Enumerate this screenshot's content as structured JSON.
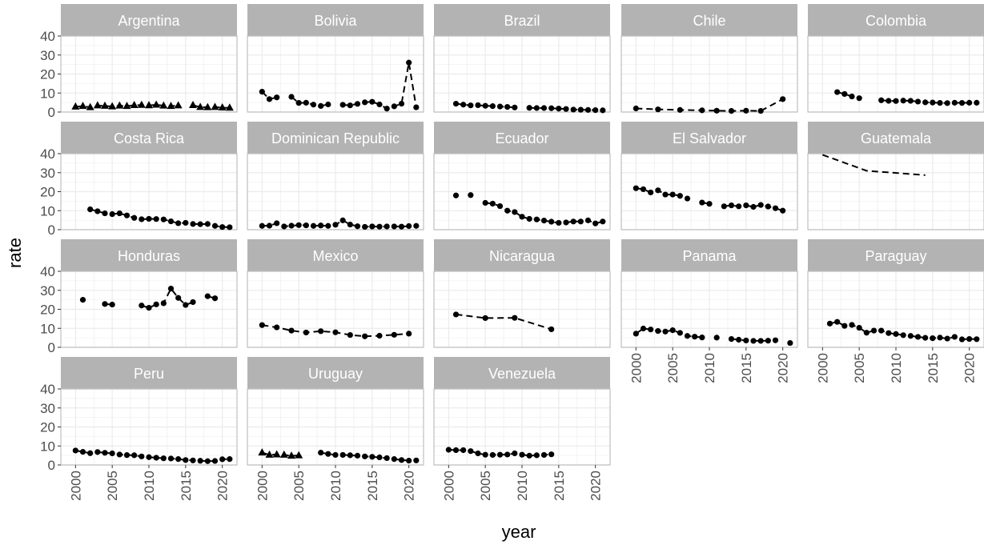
{
  "chart_data": {
    "type": "line",
    "xlabel": "year",
    "ylabel": "rate",
    "xlim": [
      1998,
      2022
    ],
    "ylim": [
      0,
      40
    ],
    "x_ticks": [
      "2000",
      "2005",
      "2010",
      "2015",
      "2020"
    ],
    "y_ticks": [
      "0",
      "10",
      "20",
      "30",
      "40"
    ],
    "grid": true,
    "line_style": "dashed",
    "colors": {
      "strip": "#b3b3b3",
      "strip_text": "#ffffff",
      "grid": "#ebebeb",
      "panel_border": "#b3b3b3",
      "series": "#000000"
    },
    "panels": [
      {
        "name": "Argentina",
        "series": [
          {
            "marker": "triangle",
            "x": [
              2000,
              2001,
              2002,
              2003,
              2004,
              2005,
              2006,
              2007,
              2008,
              2009,
              2010,
              2011,
              2012,
              2013,
              2014,
              2016,
              2017,
              2018,
              2019,
              2020,
              2021
            ],
            "y": [
              2.8,
              3.1,
              2.5,
              3.4,
              3.2,
              2.9,
              3.3,
              3.1,
              3.6,
              3.7,
              3.5,
              3.8,
              3.3,
              3.1,
              3.4,
              3.6,
              2.6,
              2.5,
              2.6,
              2.3,
              2.2
            ]
          }
        ]
      },
      {
        "name": "Bolivia",
        "series": [
          {
            "marker": "circle",
            "x": [
              2000,
              2001,
              2002,
              2004,
              2005,
              2006,
              2007,
              2008,
              2009,
              2011,
              2012,
              2013,
              2014,
              2015,
              2016,
              2017,
              2018,
              2019,
              2020,
              2021
            ],
            "y": [
              10.7,
              6.8,
              7.7,
              8.0,
              4.8,
              4.9,
              3.9,
              3.2,
              4.0,
              3.8,
              3.5,
              4.3,
              5.1,
              5.4,
              4.0,
              1.8,
              3.0,
              4.4,
              26.0,
              2.5
            ]
          }
        ]
      },
      {
        "name": "Brazil",
        "series": [
          {
            "marker": "circle",
            "x": [
              2001,
              2002,
              2003,
              2004,
              2005,
              2006,
              2007,
              2008,
              2009,
              2011,
              2012,
              2013,
              2014,
              2015,
              2016,
              2017,
              2018,
              2019,
              2020,
              2021
            ],
            "y": [
              4.4,
              3.9,
              3.5,
              3.6,
              3.3,
              3.1,
              2.9,
              2.7,
              2.4,
              2.2,
              2.1,
              2.1,
              2.0,
              1.8,
              1.6,
              1.3,
              1.2,
              1.1,
              1.0,
              0.9
            ]
          }
        ]
      },
      {
        "name": "Chile",
        "series": [
          {
            "marker": "circle",
            "x": [
              2000,
              2003,
              2006,
              2009,
              2011,
              2013,
              2015,
              2017,
              2020
            ],
            "y": [
              1.9,
              1.4,
              1.1,
              0.9,
              0.7,
              0.6,
              0.7,
              0.6,
              6.8
            ]
          }
        ]
      },
      {
        "name": "Colombia",
        "series": [
          {
            "marker": "circle",
            "x": [
              2002,
              2003,
              2004,
              2005,
              2008,
              2009,
              2010,
              2011,
              2012,
              2013,
              2014,
              2015,
              2016,
              2017,
              2018,
              2019,
              2020,
              2021
            ],
            "y": [
              10.5,
              9.5,
              8.2,
              7.3,
              6.2,
              5.9,
              5.8,
              6.0,
              5.9,
              5.5,
              5.1,
              5.0,
              4.8,
              4.7,
              4.9,
              4.8,
              4.9,
              4.9
            ]
          }
        ]
      },
      {
        "name": "Costa Rica",
        "series": [
          {
            "marker": "circle",
            "x": [
              2002,
              2003,
              2004,
              2005,
              2006,
              2007,
              2008,
              2009,
              2010,
              2011,
              2012,
              2013,
              2014,
              2015,
              2016,
              2017,
              2018,
              2019,
              2020,
              2021
            ],
            "y": [
              10.7,
              9.7,
              8.6,
              8.2,
              8.6,
              7.5,
              6.2,
              5.5,
              5.7,
              5.6,
              5.4,
              4.4,
              3.4,
              3.6,
              3.0,
              2.9,
              3.0,
              2.0,
              1.4,
              1.3
            ]
          }
        ]
      },
      {
        "name": "Dominican Republic",
        "series": [
          {
            "marker": "circle",
            "x": [
              2000,
              2001,
              2002,
              2003,
              2004,
              2005,
              2006,
              2007,
              2008,
              2009,
              2010,
              2011,
              2012,
              2013,
              2014,
              2015,
              2016,
              2017,
              2018,
              2019,
              2020,
              2021
            ],
            "y": [
              2.0,
              2.1,
              3.4,
              1.7,
              2.1,
              2.4,
              2.3,
              2.0,
              2.2,
              2.0,
              2.6,
              4.9,
              2.7,
              1.8,
              1.5,
              1.7,
              1.6,
              1.7,
              1.7,
              1.6,
              1.9,
              2.0
            ]
          }
        ]
      },
      {
        "name": "Ecuador",
        "series": [
          {
            "marker": "circle",
            "x": [
              2001,
              2003,
              2005,
              2006,
              2007,
              2008,
              2009,
              2010,
              2011,
              2012,
              2013,
              2014,
              2015,
              2016,
              2017,
              2018,
              2019,
              2020,
              2021
            ],
            "y": [
              18.0,
              18.2,
              14.1,
              13.7,
              12.4,
              10.0,
              9.3,
              6.8,
              5.7,
              5.4,
              4.8,
              4.2,
              3.6,
              3.8,
              4.3,
              4.3,
              4.9,
              3.3,
              4.3
            ]
          }
        ]
      },
      {
        "name": "El Salvador",
        "series": [
          {
            "marker": "circle",
            "x": [
              2000,
              2001,
              2002,
              2003,
              2004,
              2005,
              2006,
              2007,
              2009,
              2010,
              2012,
              2013,
              2014,
              2015,
              2016,
              2017,
              2018,
              2019,
              2020
            ],
            "y": [
              21.8,
              21.3,
              19.6,
              20.7,
              18.5,
              18.5,
              17.8,
              16.4,
              14.3,
              13.6,
              12.3,
              12.8,
              12.3,
              12.8,
              12.0,
              13.0,
              12.2,
              11.3,
              10.0
            ]
          }
        ]
      },
      {
        "name": "Guatemala",
        "series": [
          {
            "marker": "none",
            "x": [
              2000,
              2006,
              2014
            ],
            "y": [
              39.4,
              31.0,
              28.7
            ]
          }
        ]
      },
      {
        "name": "Honduras",
        "series": [
          {
            "marker": "circle",
            "x": [
              2001,
              2004,
              2005,
              2009,
              2010,
              2011,
              2012,
              2013,
              2014,
              2015,
              2016,
              2018,
              2019
            ],
            "y": [
              25.0,
              22.8,
              22.5,
              22.0,
              20.8,
              22.6,
              23.2,
              30.9,
              26.0,
              22.3,
              23.8,
              26.9,
              25.8
            ]
          }
        ]
      },
      {
        "name": "Mexico",
        "series": [
          {
            "marker": "circle",
            "x": [
              2000,
              2002,
              2004,
              2006,
              2008,
              2010,
              2012,
              2014,
              2016,
              2018,
              2020
            ],
            "y": [
              11.7,
              10.5,
              8.8,
              7.8,
              8.5,
              7.9,
              6.5,
              5.8,
              6.1,
              6.6,
              7.2
            ]
          }
        ]
      },
      {
        "name": "Nicaragua",
        "series": [
          {
            "marker": "circle",
            "x": [
              2001,
              2005,
              2009,
              2014
            ],
            "y": [
              17.3,
              15.4,
              15.5,
              9.5
            ]
          }
        ]
      },
      {
        "name": "Panama",
        "series": [
          {
            "marker": "circle",
            "x": [
              2000,
              2001,
              2002,
              2003,
              2004,
              2005,
              2006,
              2007,
              2008,
              2009,
              2011,
              2013,
              2014,
              2015,
              2016,
              2017,
              2018,
              2019,
              2021
            ],
            "y": [
              7.2,
              9.9,
              9.4,
              8.6,
              8.3,
              9.0,
              7.6,
              6.0,
              5.6,
              5.2,
              5.1,
              4.4,
              4.0,
              3.6,
              3.4,
              3.4,
              3.5,
              3.7,
              2.3
            ]
          }
        ]
      },
      {
        "name": "Paraguay",
        "series": [
          {
            "marker": "circle",
            "x": [
              2001,
              2002,
              2003,
              2004,
              2005,
              2006,
              2007,
              2008,
              2009,
              2010,
              2011,
              2012,
              2013,
              2014,
              2015,
              2016,
              2017,
              2018,
              2019,
              2020,
              2021
            ],
            "y": [
              12.5,
              13.4,
              11.3,
              11.8,
              10.3,
              7.7,
              8.8,
              8.8,
              7.5,
              7.0,
              6.4,
              6.0,
              5.5,
              5.0,
              4.8,
              5.1,
              4.6,
              5.5,
              4.2,
              4.4,
              4.3
            ]
          }
        ]
      },
      {
        "name": "Peru",
        "series": [
          {
            "marker": "circle",
            "x": [
              2000,
              2001,
              2002,
              2003,
              2004,
              2005,
              2006,
              2007,
              2008,
              2009,
              2010,
              2011,
              2012,
              2013,
              2014,
              2015,
              2016,
              2017,
              2018,
              2019,
              2020,
              2021
            ],
            "y": [
              7.6,
              6.9,
              6.2,
              6.8,
              6.4,
              6.1,
              5.5,
              5.2,
              5.1,
              4.5,
              4.1,
              3.8,
              3.5,
              3.4,
              3.1,
              2.6,
              2.4,
              2.2,
              2.0,
              2.1,
              3.0,
              3.1
            ]
          }
        ]
      },
      {
        "name": "Uruguay",
        "series": [
          {
            "marker": "triangle",
            "x": [
              2000,
              2001,
              2002,
              2003,
              2004,
              2005
            ],
            "y": [
              6.5,
              5.3,
              5.5,
              5.3,
              4.8,
              5.0
            ]
          },
          {
            "marker": "circle",
            "x": [
              2008,
              2009,
              2010,
              2011,
              2012,
              2013,
              2014,
              2015,
              2016,
              2017,
              2018,
              2019,
              2020,
              2021
            ],
            "y": [
              6.5,
              5.8,
              5.3,
              5.3,
              5.1,
              4.9,
              4.5,
              4.3,
              4.0,
              3.6,
              3.1,
              2.6,
              2.3,
              2.4
            ]
          }
        ]
      },
      {
        "name": "Venezuela",
        "series": [
          {
            "marker": "circle",
            "x": [
              2000,
              2001,
              2002,
              2003,
              2004,
              2005,
              2006,
              2007,
              2008,
              2009,
              2010,
              2011,
              2012,
              2013,
              2014
            ],
            "y": [
              8.0,
              7.8,
              7.8,
              7.3,
              6.1,
              5.4,
              5.3,
              5.4,
              5.5,
              6.1,
              5.4,
              4.9,
              5.1,
              5.3,
              5.6
            ]
          }
        ]
      }
    ]
  }
}
